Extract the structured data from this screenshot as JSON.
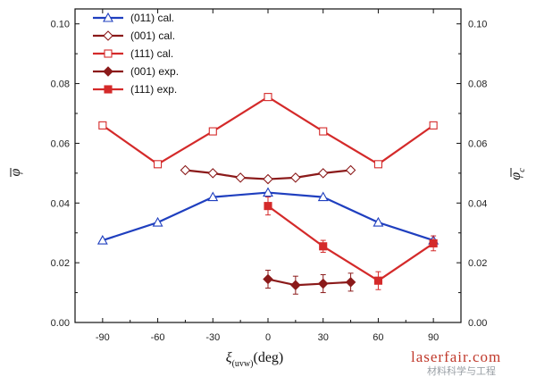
{
  "chart_data": {
    "type": "line",
    "xlabel": "ξ",
    "xlabel_sub": "(uvw)",
    "xlabel_unit": "(deg)",
    "ylabel_left": "φ",
    "ylabel_right": "φ",
    "ylabel_right_sub": "c",
    "xlim": [
      -105,
      105
    ],
    "ylim": [
      0.0,
      0.105
    ],
    "x_ticks": [
      -90,
      -60,
      -30,
      0,
      30,
      60,
      90
    ],
    "x_tick_labels": [
      "-90",
      "-60",
      "-30",
      "0",
      "30",
      "60",
      "90"
    ],
    "y_ticks": [
      0.0,
      0.02,
      0.04,
      0.06,
      0.08,
      0.1
    ],
    "y_tick_labels": [
      "0.00",
      "0.02",
      "0.04",
      "0.06",
      "0.08",
      "0.10"
    ],
    "grid": false,
    "legend_position": "top-left",
    "series": [
      {
        "name": "(011) cal.",
        "color": "#1f3fbf",
        "marker": "triangle-open",
        "x": [
          -90,
          -60,
          -30,
          0,
          30,
          60,
          90
        ],
        "y": [
          0.0275,
          0.0335,
          0.042,
          0.0435,
          0.042,
          0.0335,
          0.0275
        ]
      },
      {
        "name": "(001) cal.",
        "color": "#8b1a1a",
        "marker": "diamond-open",
        "x": [
          -45,
          -30,
          -15,
          0,
          15,
          30,
          45
        ],
        "y": [
          0.051,
          0.05,
          0.0485,
          0.048,
          0.0485,
          0.05,
          0.051
        ]
      },
      {
        "name": "(111) cal.",
        "color": "#d42a2a",
        "marker": "square-open",
        "x": [
          -90,
          -60,
          -30,
          0,
          30,
          60,
          90
        ],
        "y": [
          0.066,
          0.053,
          0.064,
          0.0755,
          0.064,
          0.053,
          0.066
        ]
      },
      {
        "name": "(001) exp.",
        "color": "#8b1a1a",
        "marker": "diamond-filled",
        "x": [
          0,
          15,
          30,
          45
        ],
        "y": [
          0.0145,
          0.0125,
          0.013,
          0.0135
        ],
        "err": [
          0.003,
          0.003,
          0.003,
          0.003
        ]
      },
      {
        "name": "(111) exp.",
        "color": "#d42a2a",
        "marker": "square-filled",
        "x": [
          0,
          30,
          60,
          90
        ],
        "y": [
          0.039,
          0.0255,
          0.014,
          0.0265
        ],
        "err": [
          0.003,
          0.002,
          0.003,
          0.0025
        ]
      }
    ]
  },
  "watermark": {
    "line1": "laserfair.com",
    "line2": "材料科学与工程"
  }
}
